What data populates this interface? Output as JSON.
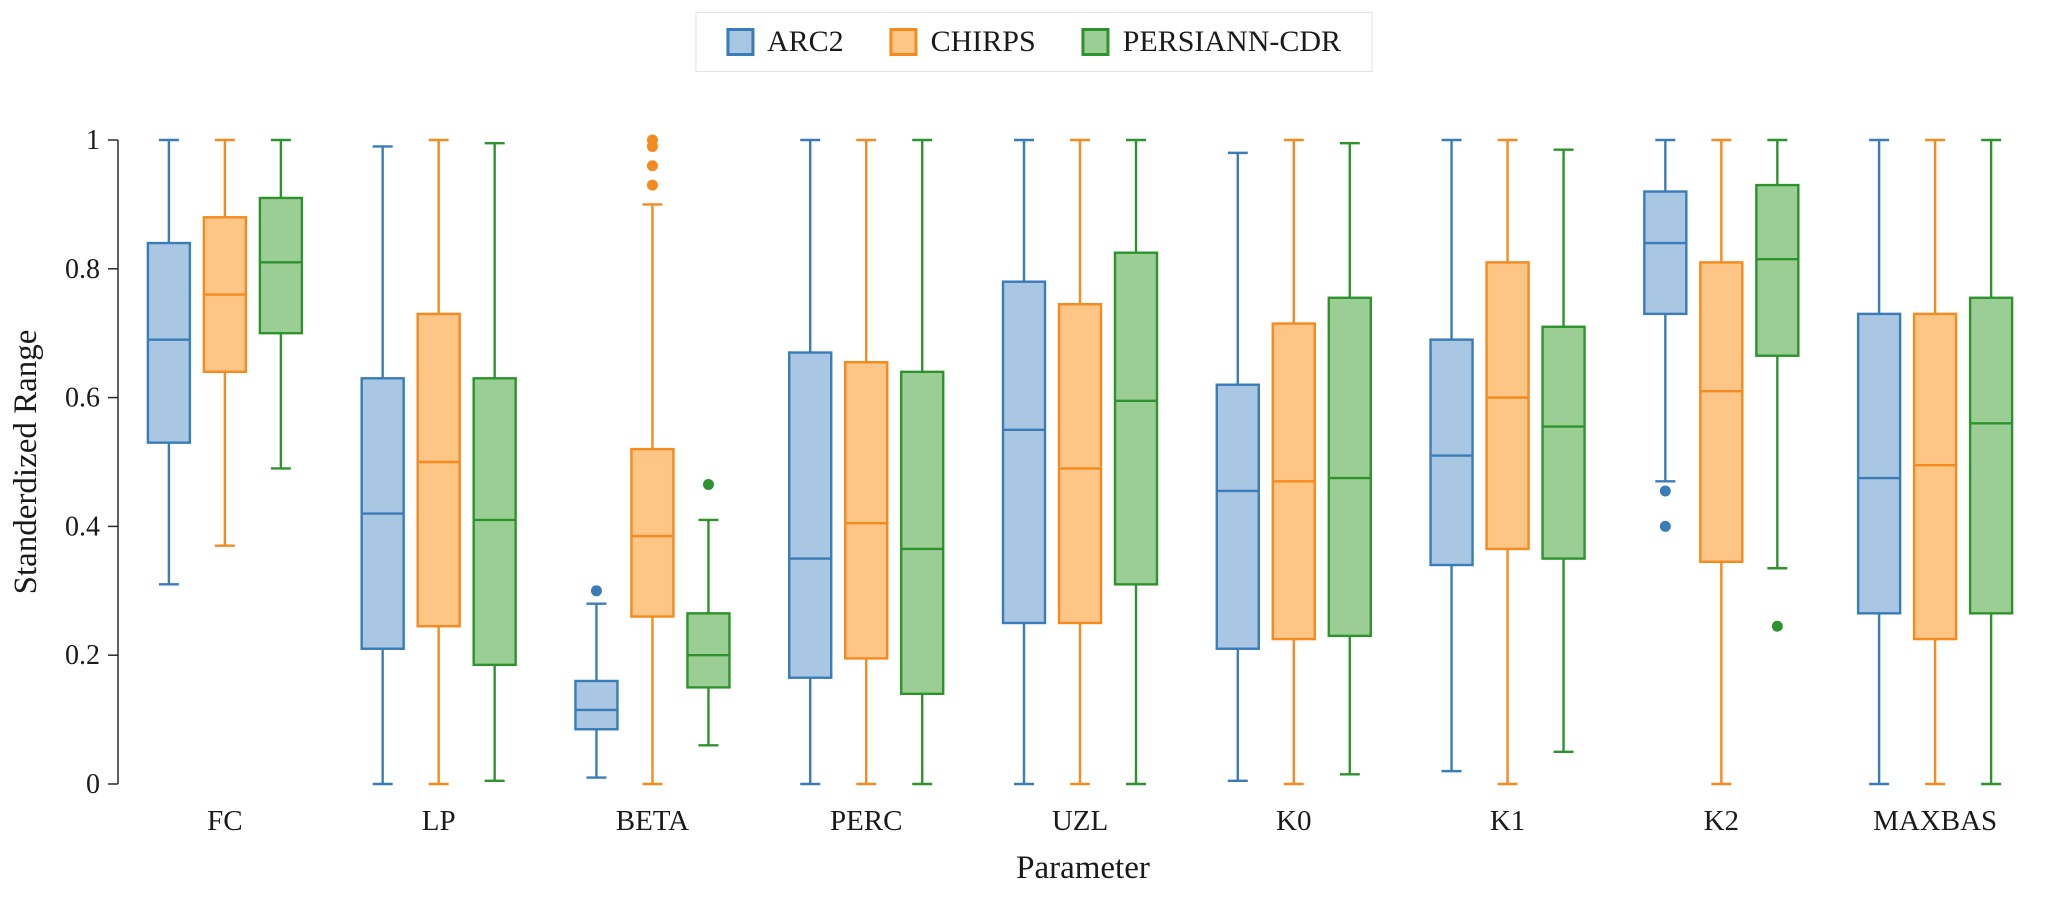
{
  "chart": {
    "ylabel": "Standerdized Range",
    "xlabel": "Parameter",
    "yticks": [
      0,
      0.2,
      0.4,
      0.6,
      0.8,
      1
    ],
    "legend": [
      {
        "label": "ARC2",
        "fill": "#a9c6e2",
        "stroke": "#3a7cb8"
      },
      {
        "label": "CHIRPS",
        "fill": "#fdc586",
        "stroke": "#f58a1f"
      },
      {
        "label": "PERSIANN-CDR",
        "fill": "#9bce95",
        "stroke": "#2e932e"
      }
    ]
  },
  "chart_data": {
    "type": "boxplot",
    "title": "",
    "xlabel": "Parameter",
    "ylabel": "Standerdized Range",
    "ylim": [
      0,
      1
    ],
    "grid": false,
    "legend_position": "top-center",
    "categories": [
      "FC",
      "LP",
      "BETA",
      "PERC",
      "UZL",
      "K0",
      "K1",
      "K2",
      "MAXBAS"
    ],
    "series": [
      {
        "name": "ARC2",
        "fill": "#a9c6e2",
        "stroke": "#3a7cb8",
        "boxes": [
          {
            "low": 0.31,
            "q1": 0.53,
            "med": 0.69,
            "q3": 0.84,
            "high": 1.0,
            "outliers": []
          },
          {
            "low": 0.0,
            "q1": 0.21,
            "med": 0.42,
            "q3": 0.63,
            "high": 0.99,
            "outliers": []
          },
          {
            "low": 0.01,
            "q1": 0.085,
            "med": 0.115,
            "q3": 0.16,
            "high": 0.28,
            "outliers": [
              0.3
            ]
          },
          {
            "low": 0.0,
            "q1": 0.165,
            "med": 0.35,
            "q3": 0.67,
            "high": 1.0,
            "outliers": []
          },
          {
            "low": 0.0,
            "q1": 0.25,
            "med": 0.55,
            "q3": 0.78,
            "high": 1.0,
            "outliers": []
          },
          {
            "low": 0.005,
            "q1": 0.21,
            "med": 0.455,
            "q3": 0.62,
            "high": 0.98,
            "outliers": []
          },
          {
            "low": 0.02,
            "q1": 0.34,
            "med": 0.51,
            "q3": 0.69,
            "high": 1.0,
            "outliers": []
          },
          {
            "low": 0.47,
            "q1": 0.73,
            "med": 0.84,
            "q3": 0.92,
            "high": 1.0,
            "outliers": [
              0.455,
              0.4
            ]
          },
          {
            "low": 0.0,
            "q1": 0.265,
            "med": 0.475,
            "q3": 0.73,
            "high": 1.0,
            "outliers": []
          }
        ]
      },
      {
        "name": "CHIRPS",
        "fill": "#fdc586",
        "stroke": "#f58a1f",
        "boxes": [
          {
            "low": 0.37,
            "q1": 0.64,
            "med": 0.76,
            "q3": 0.88,
            "high": 1.0,
            "outliers": []
          },
          {
            "low": 0.0,
            "q1": 0.245,
            "med": 0.5,
            "q3": 0.73,
            "high": 1.0,
            "outliers": []
          },
          {
            "low": 0.0,
            "q1": 0.26,
            "med": 0.385,
            "q3": 0.52,
            "high": 0.9,
            "outliers": [
              0.93,
              0.96,
              0.99,
              1.0
            ]
          },
          {
            "low": 0.0,
            "q1": 0.195,
            "med": 0.405,
            "q3": 0.655,
            "high": 1.0,
            "outliers": []
          },
          {
            "low": 0.0,
            "q1": 0.25,
            "med": 0.49,
            "q3": 0.745,
            "high": 1.0,
            "outliers": []
          },
          {
            "low": 0.0,
            "q1": 0.225,
            "med": 0.47,
            "q3": 0.715,
            "high": 1.0,
            "outliers": []
          },
          {
            "low": 0.0,
            "q1": 0.365,
            "med": 0.6,
            "q3": 0.81,
            "high": 1.0,
            "outliers": []
          },
          {
            "low": 0.0,
            "q1": 0.345,
            "med": 0.61,
            "q3": 0.81,
            "high": 1.0,
            "outliers": []
          },
          {
            "low": 0.0,
            "q1": 0.225,
            "med": 0.495,
            "q3": 0.73,
            "high": 1.0,
            "outliers": []
          }
        ]
      },
      {
        "name": "PERSIANN-CDR",
        "fill": "#9bce95",
        "stroke": "#2e932e",
        "boxes": [
          {
            "low": 0.49,
            "q1": 0.7,
            "med": 0.81,
            "q3": 0.91,
            "high": 1.0,
            "outliers": []
          },
          {
            "low": 0.005,
            "q1": 0.185,
            "med": 0.41,
            "q3": 0.63,
            "high": 0.995,
            "outliers": []
          },
          {
            "low": 0.06,
            "q1": 0.15,
            "med": 0.2,
            "q3": 0.265,
            "high": 0.41,
            "outliers": [
              0.465
            ]
          },
          {
            "low": 0.0,
            "q1": 0.14,
            "med": 0.365,
            "q3": 0.64,
            "high": 1.0,
            "outliers": []
          },
          {
            "low": 0.0,
            "q1": 0.31,
            "med": 0.595,
            "q3": 0.825,
            "high": 1.0,
            "outliers": []
          },
          {
            "low": 0.015,
            "q1": 0.23,
            "med": 0.475,
            "q3": 0.755,
            "high": 0.995,
            "outliers": []
          },
          {
            "low": 0.05,
            "q1": 0.35,
            "med": 0.555,
            "q3": 0.71,
            "high": 0.985,
            "outliers": []
          },
          {
            "low": 0.335,
            "q1": 0.665,
            "med": 0.815,
            "q3": 0.93,
            "high": 1.0,
            "outliers": [
              0.245
            ]
          },
          {
            "low": 0.0,
            "q1": 0.265,
            "med": 0.56,
            "q3": 0.755,
            "high": 1.0,
            "outliers": []
          }
        ]
      }
    ]
  }
}
